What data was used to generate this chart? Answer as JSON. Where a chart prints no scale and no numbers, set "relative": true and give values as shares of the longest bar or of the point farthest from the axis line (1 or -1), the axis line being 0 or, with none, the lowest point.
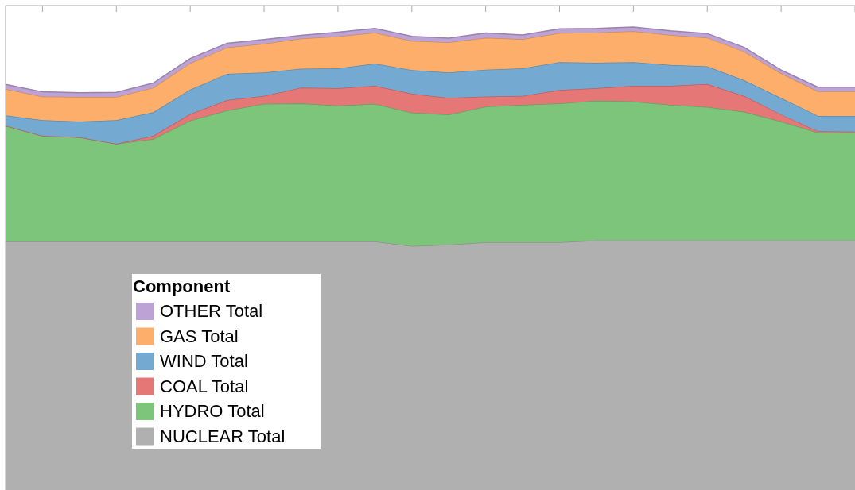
{
  "chart_data": {
    "type": "area",
    "stacked": true,
    "relative": true,
    "legend_title": "Component",
    "legend": "bottom left",
    "categories": [
      null,
      null,
      null,
      null,
      null,
      null,
      null,
      null,
      null,
      null,
      null,
      null,
      null,
      null,
      null,
      null,
      null,
      null,
      null,
      null,
      null,
      null,
      null,
      null
    ],
    "series": [
      {
        "name": "NUCLEAR Total",
        "color": "#b0b0b0",
        "values": [
          0.537,
          0.537,
          0.537,
          0.537,
          0.537,
          0.537,
          0.537,
          0.537,
          0.537,
          0.537,
          0.537,
          0.527,
          0.53,
          0.535,
          0.535,
          0.535,
          0.539,
          0.539,
          0.539,
          0.539,
          0.539,
          0.539,
          0.539,
          0.539
        ]
      },
      {
        "name": "HYDRO Total",
        "color": "#7ec57c",
        "values": [
          0.25,
          0.228,
          0.225,
          0.211,
          0.221,
          0.261,
          0.283,
          0.297,
          0.298,
          0.293,
          0.297,
          0.288,
          0.281,
          0.293,
          0.297,
          0.3,
          0.302,
          0.3,
          0.293,
          0.288,
          0.278,
          0.257,
          0.233,
          0.233
        ]
      },
      {
        "name": "COAL Total",
        "color": "#e57777",
        "values": [
          0,
          0,
          0,
          0,
          0.007,
          0.014,
          0.022,
          0.017,
          0.034,
          0.038,
          0.039,
          0.041,
          0.036,
          0.022,
          0.019,
          0.029,
          0.027,
          0.034,
          0.041,
          0.05,
          0.034,
          0.015,
          0.003,
          0.002
        ]
      },
      {
        "name": "WIND Total",
        "color": "#74aad2",
        "values": [
          0.022,
          0.034,
          0.034,
          0.051,
          0.051,
          0.053,
          0.057,
          0.051,
          0.041,
          0.043,
          0.048,
          0.051,
          0.055,
          0.058,
          0.06,
          0.06,
          0.055,
          0.051,
          0.045,
          0.038,
          0.034,
          0.036,
          0.033,
          0.034
        ]
      },
      {
        "name": "GAS Total",
        "color": "#fdae6b",
        "values": [
          0.057,
          0.051,
          0.053,
          0.05,
          0.053,
          0.057,
          0.057,
          0.062,
          0.065,
          0.069,
          0.067,
          0.063,
          0.065,
          0.069,
          0.063,
          0.063,
          0.065,
          0.067,
          0.065,
          0.062,
          0.062,
          0.053,
          0.053,
          0.053
        ]
      },
      {
        "name": "OTHER Total",
        "color": "#bda2d6",
        "values": [
          0.01,
          0.01,
          0.009,
          0.01,
          0.01,
          0.01,
          0.009,
          0.009,
          0.007,
          0.009,
          0.009,
          0.01,
          0.009,
          0.01,
          0.009,
          0.009,
          0.009,
          0.009,
          0.009,
          0.009,
          0.009,
          0.007,
          0.009,
          0.009
        ]
      }
    ]
  }
}
